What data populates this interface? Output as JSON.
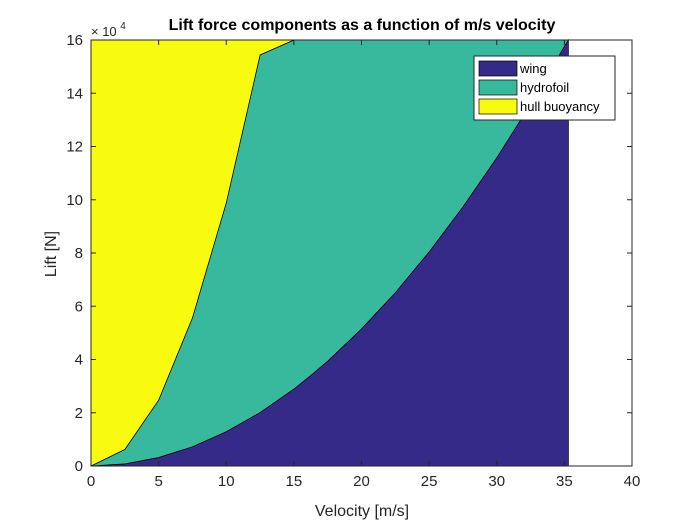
{
  "chart_data": {
    "type": "area",
    "title": "Lift force components as a function of m/s velocity",
    "xlabel": "Velocity [m/s]",
    "ylabel": "Lift [N]",
    "xlim": [
      0,
      40
    ],
    "ylim": [
      0,
      160000
    ],
    "xticks": [
      0,
      5,
      10,
      15,
      20,
      25,
      30,
      35,
      40
    ],
    "yticks": [
      0,
      2,
      4,
      6,
      8,
      10,
      12,
      14,
      16
    ],
    "y_tick_multiplier": "× 10^4",
    "y_multiplier_base": "× 10",
    "y_multiplier_exp": "4",
    "stacked": true,
    "legend_location": "top-right",
    "x": [
      0,
      2.5,
      5,
      7.5,
      10,
      12.5,
      15,
      16.2,
      17.5,
      20,
      22.5,
      25,
      27.5,
      30,
      32.5,
      35,
      35.3
    ],
    "series": [
      {
        "name": "wing",
        "color": "#352a87",
        "values": [
          0,
          800,
          3200,
          7200,
          12900,
          20100,
          28900,
          33800,
          39400,
          51500,
          65100,
          80400,
          97300,
          115800,
          135900,
          157600,
          160000
        ]
      },
      {
        "name": "hydrofoil",
        "color": "#38b99e",
        "values": [
          0,
          5400,
          21500,
          48400,
          86000,
          134300,
          131100,
          126200,
          120600,
          108500,
          94900,
          79600,
          62700,
          44200,
          24100,
          2400,
          0
        ]
      },
      {
        "name": "hull buoyancy",
        "color": "#f9fb0e",
        "values": [
          160000,
          153800,
          135300,
          104400,
          61100,
          5600,
          0,
          0,
          0,
          0,
          0,
          0,
          0,
          0,
          0,
          0,
          0
        ]
      }
    ]
  }
}
